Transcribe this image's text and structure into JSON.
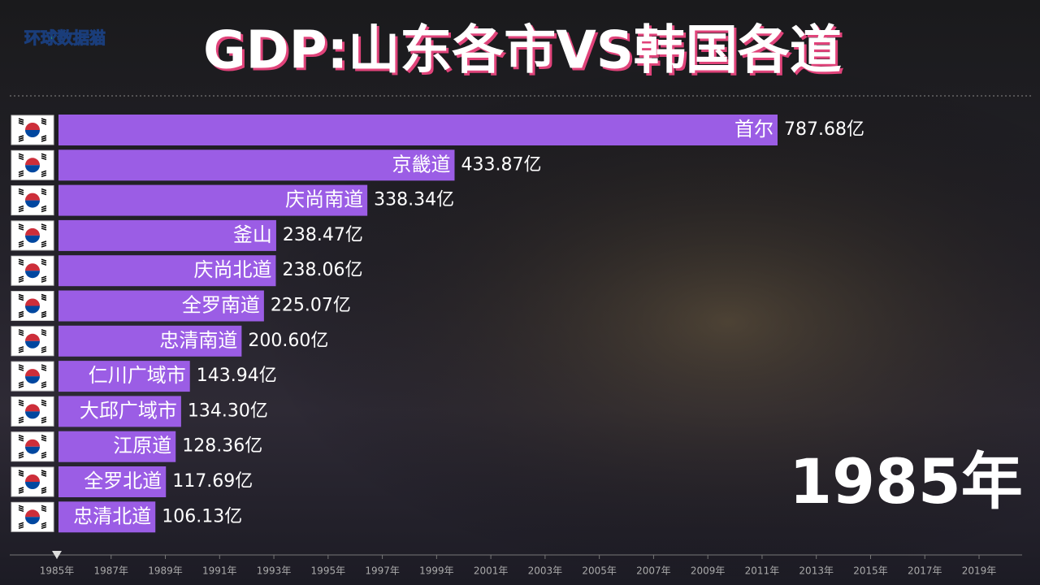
{
  "chart_data": {
    "type": "bar",
    "title": "GDP:山东各市VS韩国各道",
    "logo": "环球数据猫",
    "year": "1985年",
    "categories": [
      "首尔",
      "京畿道",
      "庆尚南道",
      "釜山",
      "庆尚北道",
      "全罗南道",
      "忠清南道",
      "仁川广域市",
      "大邱广域市",
      "江原道",
      "全罗北道",
      "忠清北道"
    ],
    "values": [
      787.68,
      433.87,
      338.34,
      238.47,
      238.06,
      225.07,
      200.6,
      143.94,
      134.3,
      128.36,
      117.69,
      106.13
    ],
    "value_labels": [
      "787.68亿",
      "433.87亿",
      "338.34亿",
      "238.47亿",
      "238.06亿",
      "225.07亿",
      "200.60亿",
      "143.94亿",
      "134.30亿",
      "128.36亿",
      "117.69亿",
      "106.13亿"
    ],
    "color": "#9b5de5",
    "timeline": [
      "1985年",
      "1987年",
      "1989年",
      "1991年",
      "1993年",
      "1995年",
      "1997年",
      "1999年",
      "2001年",
      "2003年",
      "2005年",
      "2007年",
      "2009年",
      "2011年",
      "2013年",
      "2015年",
      "2017年",
      "2019年"
    ]
  }
}
